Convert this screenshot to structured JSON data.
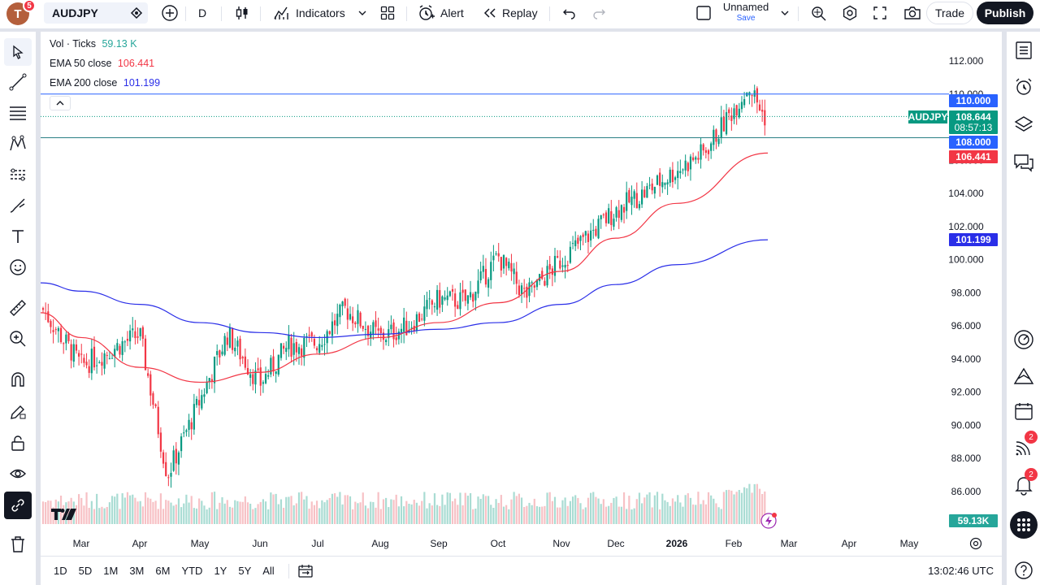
{
  "topbar": {
    "avatar_letter": "T",
    "avatar_badge": "5",
    "symbol": "AUDJPY",
    "interval": "D",
    "indicators_label": "Indicators",
    "alert_label": "Alert",
    "replay_label": "Replay",
    "layout_name": "Unnamed",
    "save_label": "Save",
    "trade_label": "Trade",
    "publish_label": "Publish"
  },
  "legend": {
    "vol_label": "Vol · Ticks",
    "vol_value": "59.13 K",
    "ema50_label": "EMA 50 close",
    "ema50_value": "106.441",
    "ema200_label": "EMA 200 close",
    "ema200_value": "101.199"
  },
  "colors": {
    "up": "#089981",
    "down": "#f23645",
    "ema50": "#f23645",
    "ema200": "#2a2ee8",
    "hline": "#2962ff",
    "accent": "#2962ff"
  },
  "chart_data": {
    "type": "candlestick",
    "symbol": "AUDJPY",
    "interval": "D",
    "y_ticks": [
      "112.000",
      "110.000",
      "108.000",
      "106.000",
      "104.000",
      "102.000",
      "100.000",
      "98.000",
      "96.000",
      "94.000",
      "92.000",
      "90.000",
      "88.000",
      "86.000"
    ],
    "x_ticks": [
      "Mar",
      "Apr",
      "May",
      "Jun",
      "Jul",
      "Aug",
      "Sep",
      "Oct",
      "Nov",
      "Dec",
      "2026",
      "Feb",
      "Mar",
      "Apr",
      "May"
    ],
    "ylim": [
      84.5,
      113.2
    ],
    "close_path": [
      [
        "Feb",
        97.2
      ],
      [
        "Mar",
        93.6
      ],
      [
        "Apr",
        95.5
      ],
      [
        "Apr",
        87.0
      ],
      [
        "May",
        91.5
      ],
      [
        "May",
        95.5
      ],
      [
        "Jun",
        92.5
      ],
      [
        "Jun",
        94.8
      ],
      [
        "Jul",
        95.0
      ],
      [
        "Jul",
        97.0
      ],
      [
        "Aug",
        95.3
      ],
      [
        "Aug",
        96.0
      ],
      [
        "Sep",
        97.6
      ],
      [
        "Sep",
        97.5
      ],
      [
        "Oct",
        100.2
      ],
      [
        "Oct",
        97.8
      ],
      [
        "Nov",
        100.0
      ],
      [
        "Nov",
        101.5
      ],
      [
        "Dec",
        103.0
      ],
      [
        "Dec",
        104.0
      ],
      [
        "2026",
        105.4
      ],
      [
        "2026",
        106.5
      ],
      [
        "Feb",
        110.5
      ],
      [
        "Feb",
        108.64
      ]
    ],
    "ema50": [
      [
        "Feb",
        96.8
      ],
      [
        "Mar",
        95.3
      ],
      [
        "Apr",
        93.5
      ],
      [
        "May",
        92.6
      ],
      [
        "Jun",
        93.2
      ],
      [
        "Jul",
        94.3
      ],
      [
        "Aug",
        95.3
      ],
      [
        "Sep",
        96.2
      ],
      [
        "Oct",
        97.4
      ],
      [
        "Nov",
        99.3
      ],
      [
        "Dec",
        101.3
      ],
      [
        "2026",
        103.4
      ],
      [
        "Feb",
        106.44
      ]
    ],
    "ema200": [
      [
        "Feb",
        98.6
      ],
      [
        "Mar",
        98.1
      ],
      [
        "Apr",
        97.3
      ],
      [
        "May",
        96.2
      ],
      [
        "Jun",
        95.6
      ],
      [
        "Jul",
        95.3
      ],
      [
        "Aug",
        95.5
      ],
      [
        "Sep",
        95.8
      ],
      [
        "Oct",
        96.2
      ],
      [
        "Nov",
        97.3
      ],
      [
        "Dec",
        98.5
      ],
      [
        "2026",
        99.7
      ],
      [
        "Feb",
        101.2
      ]
    ],
    "horizontal_lines": [
      110.0,
      108.0
    ],
    "price_labels": [
      {
        "text": "110.000",
        "color": "#2962ff"
      },
      {
        "text": "108.644",
        "sub": "08:57:13",
        "color": "#089981"
      },
      {
        "text": "108.000",
        "color": "#2962ff"
      },
      {
        "text": "106.441",
        "color": "#f23645"
      },
      {
        "text": "101.199",
        "color": "#2a2ee8"
      },
      {
        "text": "59.13K",
        "color": "#26a69a"
      }
    ],
    "symbol_tag": "AUDJPY",
    "last_price": 108.644,
    "countdown": "08:57:13",
    "volume_last": "59.13K"
  },
  "bottombar": {
    "ranges": [
      "1D",
      "5D",
      "1M",
      "3M",
      "6M",
      "YTD",
      "1Y",
      "5Y",
      "All"
    ],
    "clock": "13:02:46 UTC"
  },
  "right_badges": {
    "news": "2",
    "alerts": "2"
  }
}
